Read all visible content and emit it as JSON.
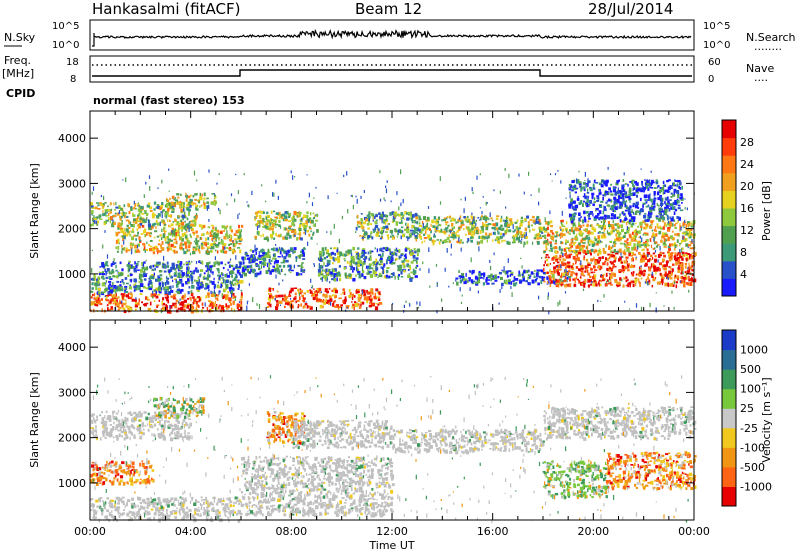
{
  "header": {
    "station": "Hankasalmi (fitACF)",
    "beam": "Beam 12",
    "date": "28/Jul/2014"
  },
  "top_panel": {
    "left_label": "N.Sky",
    "left_ticks": [
      "10^5",
      "10^0"
    ],
    "right_ticks": [
      "10^5",
      "10^0"
    ],
    "right_label": "N.Search",
    "right_dots": "........"
  },
  "freq_panel": {
    "left_label_1": "Freq.",
    "left_label_2": "[MHz]",
    "left_ticks": [
      "18",
      "8"
    ],
    "right_ticks": [
      "60",
      "0"
    ],
    "right_label": "Nave",
    "right_dots": "...."
  },
  "cpid": {
    "label": "CPID",
    "mode": "normal (fast stereo) 153"
  },
  "chart_data": [
    {
      "type": "heatmap",
      "panel": "power",
      "ylabel": "Slant Range [km]",
      "y_ticks": [
        "1000",
        "2000",
        "3000",
        "4000"
      ],
      "ylim": [
        180,
        4600
      ],
      "xlim": [
        "00:00",
        "24:00"
      ],
      "colorbar": {
        "label": "Power [dB]",
        "ticks": [
          "4",
          "8",
          "12",
          "16",
          "20",
          "24",
          "28"
        ],
        "colors": [
          "#1a1aff",
          "#2850c8",
          "#3c9a78",
          "#50a050",
          "#8ec83c",
          "#e6d21e",
          "#f0a01e",
          "#ff7814",
          "#ff3c0a",
          "#e60000"
        ]
      },
      "bands": [
        {
          "t0": 0.0,
          "t1": 6.0,
          "r0": 200,
          "r1": 600,
          "level": 0.8
        },
        {
          "t0": 0.0,
          "t1": 6.0,
          "r0": 600,
          "r1": 1000,
          "level": 0.25
        },
        {
          "t0": 0.3,
          "t1": 6.2,
          "r0": 1000,
          "r1": 1300,
          "level": 0.2
        },
        {
          "t0": 1.0,
          "t1": 6.0,
          "r0": 1500,
          "r1": 2100,
          "level": 0.55
        },
        {
          "t0": 0.0,
          "t1": 4.2,
          "r0": 2100,
          "r1": 2600,
          "level": 0.45
        },
        {
          "t0": 3.0,
          "t1": 5.0,
          "r0": 2500,
          "r1": 2800,
          "level": 0.5
        },
        {
          "t0": 6.0,
          "t1": 8.5,
          "r0": 1000,
          "r1": 1600,
          "level": 0.2
        },
        {
          "t0": 6.5,
          "t1": 9.0,
          "r0": 1800,
          "r1": 2400,
          "level": 0.45
        },
        {
          "t0": 7.0,
          "t1": 11.5,
          "r0": 280,
          "r1": 700,
          "level": 0.8
        },
        {
          "t0": 9.0,
          "t1": 13.0,
          "r0": 900,
          "r1": 1600,
          "level": 0.3
        },
        {
          "t0": 10.5,
          "t1": 13.0,
          "r0": 1800,
          "r1": 2400,
          "level": 0.4
        },
        {
          "t0": 13.0,
          "t1": 18.0,
          "r0": 1700,
          "r1": 2300,
          "level": 0.45
        },
        {
          "t0": 14.5,
          "t1": 19.0,
          "r0": 800,
          "r1": 1100,
          "level": 0.15
        },
        {
          "t0": 18.0,
          "t1": 24.0,
          "r0": 1500,
          "r1": 2200,
          "level": 0.55
        },
        {
          "t0": 19.0,
          "t1": 23.5,
          "r0": 2200,
          "r1": 3100,
          "level": 0.12
        },
        {
          "t0": 18.0,
          "t1": 24.0,
          "r0": 750,
          "r1": 1500,
          "level": 0.85
        }
      ]
    },
    {
      "type": "heatmap",
      "panel": "velocity",
      "ylabel": "Slant Range [km]",
      "xlabel": "Time UT",
      "y_ticks": [
        "1000",
        "2000",
        "3000",
        "4000"
      ],
      "x_ticks": [
        "00:00",
        "04:00",
        "08:00",
        "12:00",
        "16:00",
        "20:00",
        "00:00"
      ],
      "ylim": [
        180,
        4600
      ],
      "xlim": [
        "00:00",
        "24:00"
      ],
      "colorbar": {
        "label": "Velocity [m s⁻¹]",
        "ticks": [
          "1000",
          "500",
          "100",
          "25",
          "-25",
          "-100",
          "-500",
          "-1000"
        ],
        "colors": [
          "#1a3cc8",
          "#2a6e96",
          "#3c9a5a",
          "#78c83c",
          "#c8c8c8",
          "#f0c81e",
          "#f09614",
          "#ff6414",
          "#e60000"
        ]
      },
      "bands": [
        {
          "t0": 0.0,
          "t1": 6.0,
          "r0": 200,
          "r1": 700,
          "class": "ground"
        },
        {
          "t0": 0.0,
          "t1": 2.5,
          "r0": 1000,
          "r1": 1500,
          "class": "neg"
        },
        {
          "t0": 0.0,
          "t1": 4.0,
          "r0": 2000,
          "r1": 2600,
          "class": "ground"
        },
        {
          "t0": 2.5,
          "t1": 4.5,
          "r0": 2500,
          "r1": 2900,
          "class": "mix"
        },
        {
          "t0": 6.0,
          "t1": 12.0,
          "r0": 300,
          "r1": 1600,
          "class": "ground"
        },
        {
          "t0": 7.0,
          "t1": 8.5,
          "r0": 1900,
          "r1": 2600,
          "class": "neg"
        },
        {
          "t0": 8.0,
          "t1": 12.0,
          "r0": 1800,
          "r1": 2400,
          "class": "ground"
        },
        {
          "t0": 12.0,
          "t1": 18.0,
          "r0": 1700,
          "r1": 2200,
          "class": "ground"
        },
        {
          "t0": 18.0,
          "t1": 20.5,
          "r0": 700,
          "r1": 1500,
          "class": "pos"
        },
        {
          "t0": 20.5,
          "t1": 24.0,
          "r0": 900,
          "r1": 1700,
          "class": "neg"
        },
        {
          "t0": 18.0,
          "t1": 24.0,
          "r0": 2000,
          "r1": 2700,
          "class": "ground"
        }
      ]
    }
  ]
}
